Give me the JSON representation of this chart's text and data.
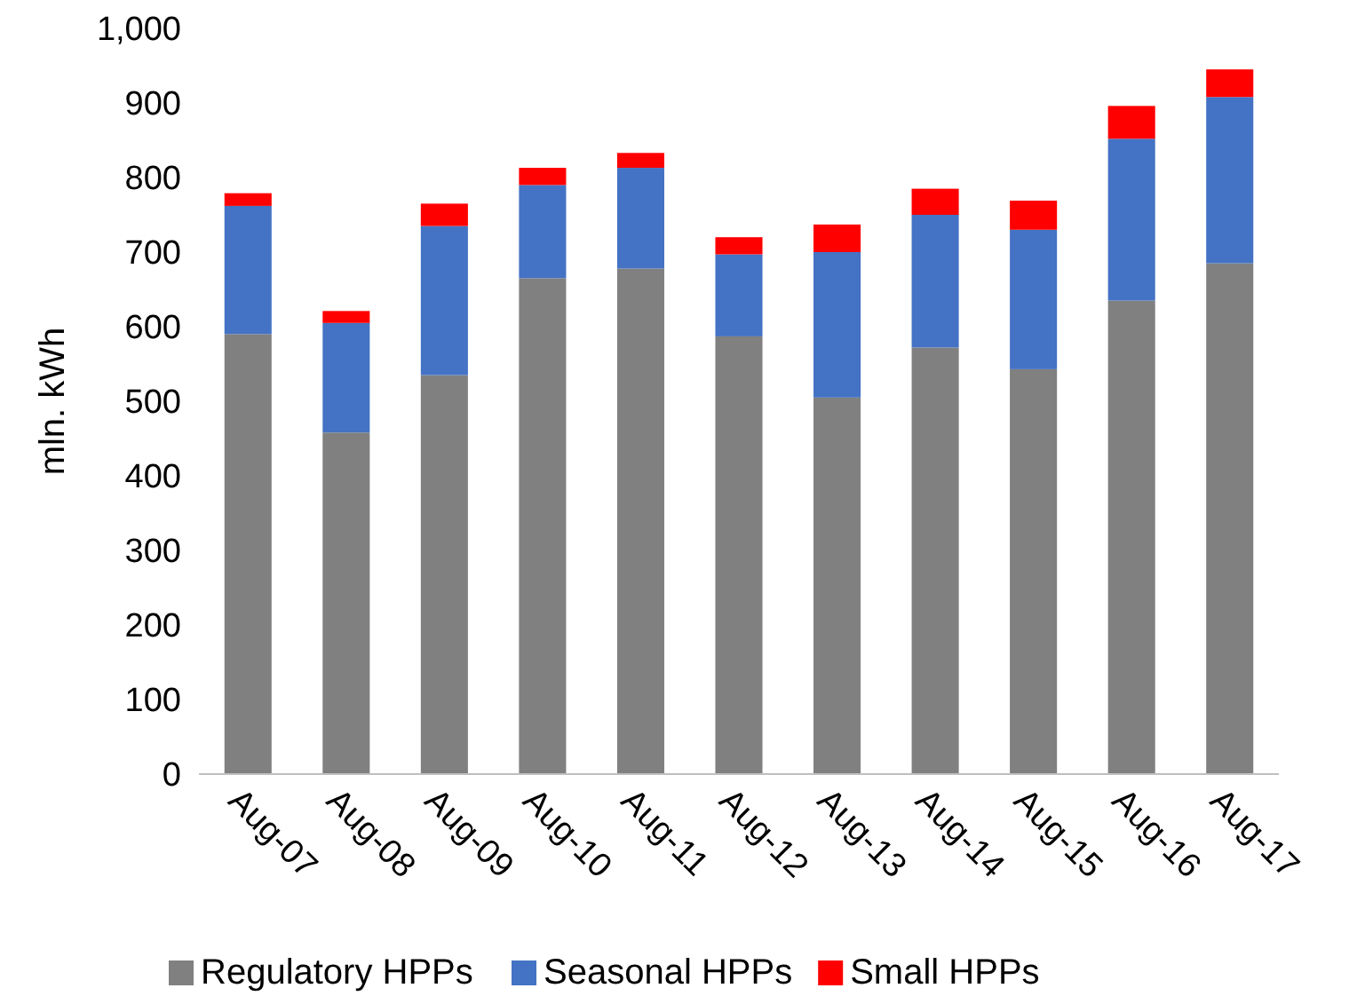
{
  "chart_data": {
    "type": "bar",
    "stacked": true,
    "ylabel": "mln. kWh",
    "categories": [
      "Aug-07",
      "Aug-08",
      "Aug-09",
      "Aug-10",
      "Aug-11",
      "Aug-12",
      "Aug-13",
      "Aug-14",
      "Aug-15",
      "Aug-16",
      "Aug-17"
    ],
    "series": [
      {
        "name": "Regulatory HPPs",
        "color": "#808080",
        "values": [
          590,
          458,
          535,
          665,
          678,
          587,
          505,
          572,
          543,
          635,
          685
        ]
      },
      {
        "name": "Seasonal HPPs",
        "color": "#4472c4",
        "values": [
          172,
          147,
          200,
          125,
          135,
          110,
          195,
          178,
          187,
          217,
          223
        ]
      },
      {
        "name": "Small HPPs",
        "color": "#ff0000",
        "values": [
          17,
          16,
          30,
          23,
          20,
          23,
          37,
          35,
          39,
          44,
          37
        ]
      }
    ],
    "ylim": [
      0,
      1000
    ],
    "yticks": [
      0,
      100,
      200,
      300,
      400,
      500,
      600,
      700,
      800,
      900,
      {
        "value": 1000,
        "label": "1,000"
      }
    ],
    "grid": false,
    "legend": "bottom"
  }
}
